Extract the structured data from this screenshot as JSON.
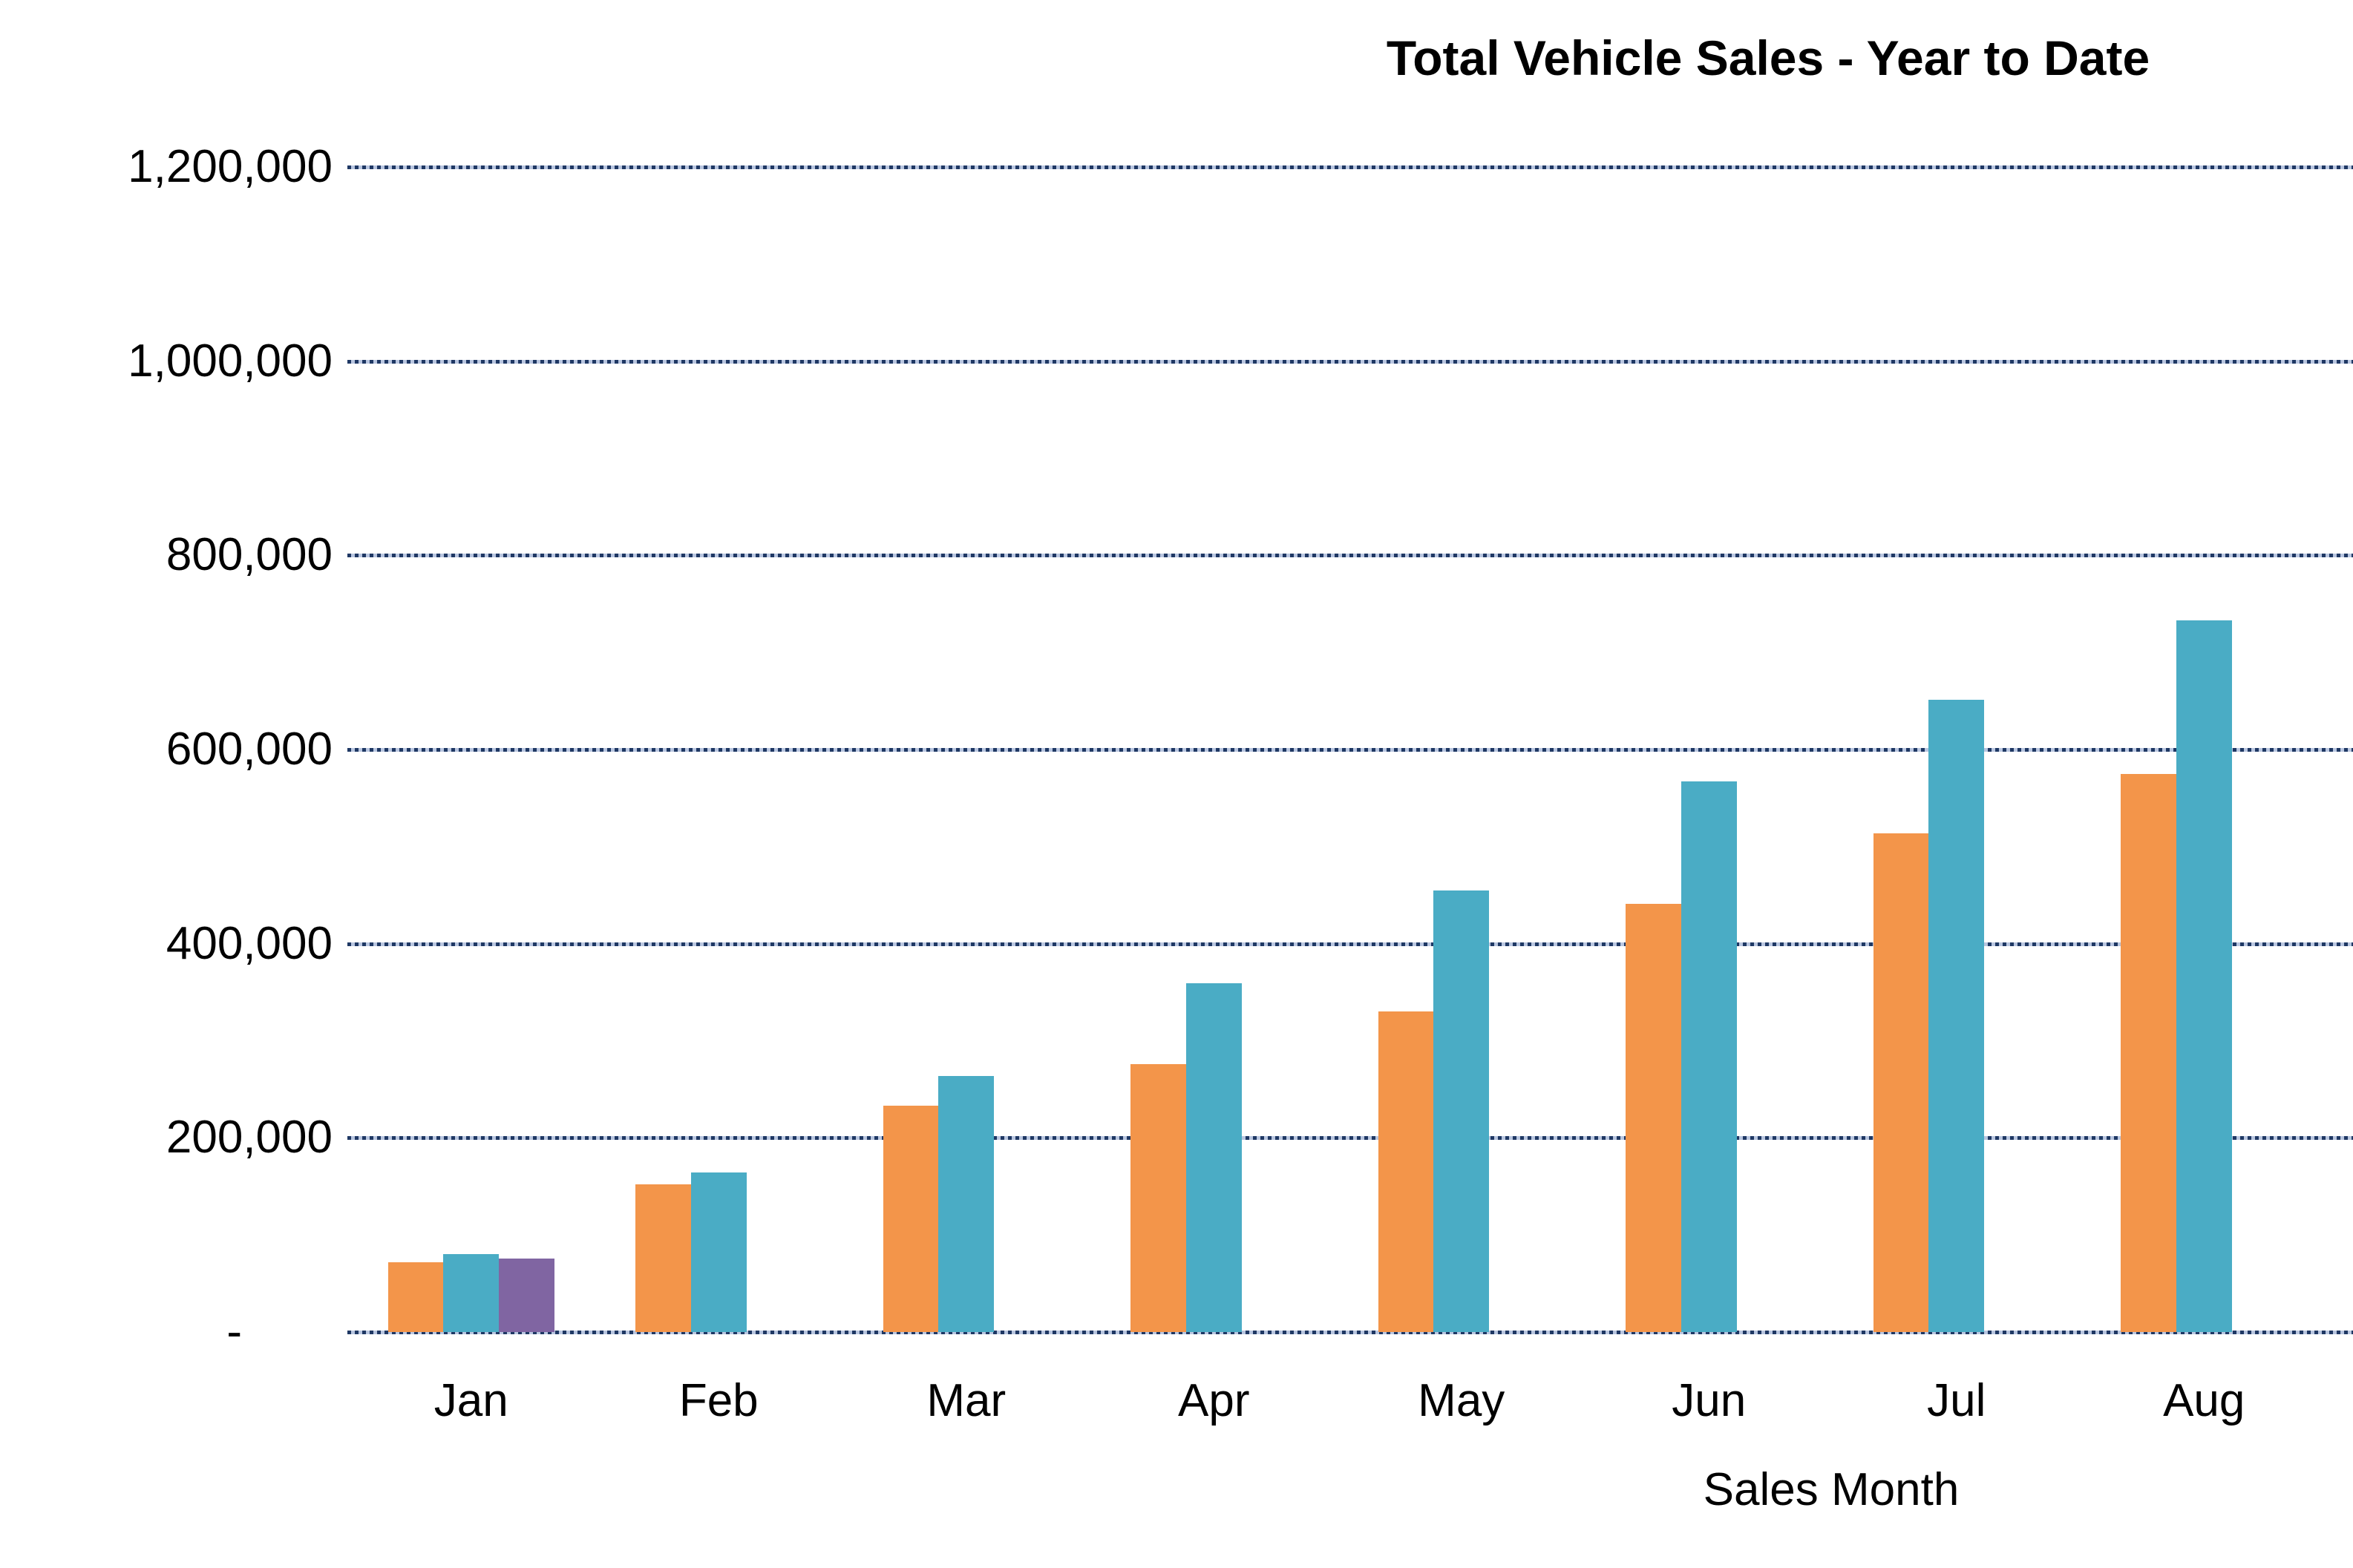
{
  "chart_data": {
    "type": "bar",
    "title": "Total Vehicle Sales - Year to Date",
    "xlabel": "Sales Month",
    "ylabel": "",
    "categories": [
      "Jan",
      "Feb",
      "Mar",
      "Apr",
      "May",
      "Jun",
      "Jul",
      "Aug"
    ],
    "series": [
      {
        "name": "orange-series",
        "color": "#F3954A",
        "values": [
          72000,
          152000,
          233000,
          276000,
          330000,
          441000,
          514000,
          575000
        ]
      },
      {
        "name": "teal-series",
        "color": "#4AACC5",
        "values": [
          80000,
          164000,
          264000,
          359000,
          455000,
          567000,
          651000,
          733000
        ]
      },
      {
        "name": "purple-series",
        "color": "#8065A2",
        "values": [
          76000,
          null,
          null,
          null,
          null,
          null,
          null,
          null
        ]
      }
    ],
    "ylim": [
      0,
      1200000
    ],
    "y_ticks": [
      {
        "label": "1,200,000",
        "value": 1200000
      },
      {
        "label": "1,000,000",
        "value": 1000000
      },
      {
        "label": "800,000",
        "value": 800000
      },
      {
        "label": "600,000",
        "value": 600000
      },
      {
        "label": "400,000",
        "value": 400000
      },
      {
        "label": "200,000",
        "value": 200000
      },
      {
        "label": "-",
        "value": 0
      }
    ],
    "grid": "horizontal-dotted",
    "gridline_colors": {
      "dark": "#1F3864",
      "light": "#b9c6e0"
    },
    "legend": "none",
    "text_color": "#000000"
  }
}
